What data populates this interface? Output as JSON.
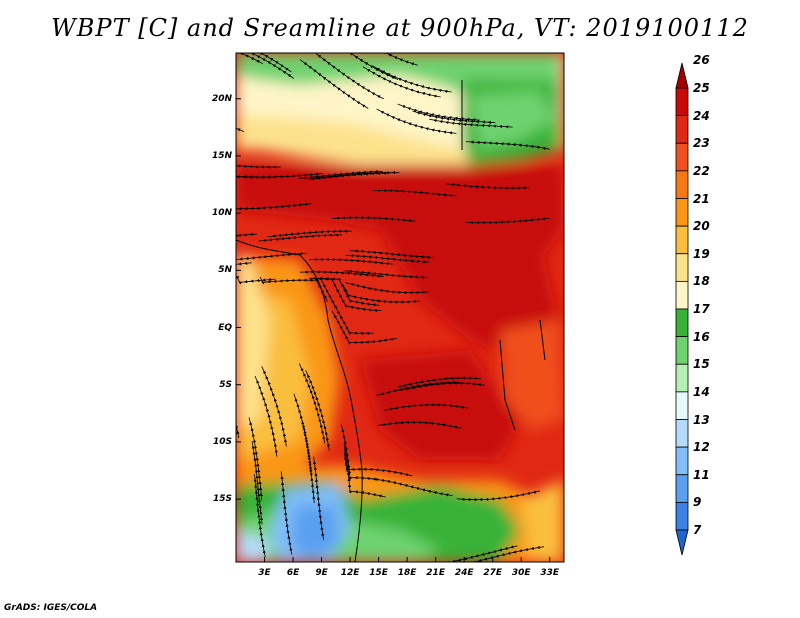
{
  "title": "WBPT [C] and Sreamline at 900hPa, VT: 2019100112",
  "credit": "GrADS: IGES/COLA",
  "map": {
    "lat_range": [
      -20.5,
      24
    ],
    "lon_range": [
      0,
      34.5
    ],
    "lat_ticks": [
      {
        "value": 20,
        "label": "20N"
      },
      {
        "value": 15,
        "label": "15N"
      },
      {
        "value": 10,
        "label": "10N"
      },
      {
        "value": 5,
        "label": "5N"
      },
      {
        "value": 0,
        "label": "EQ"
      },
      {
        "value": -5,
        "label": "5S"
      },
      {
        "value": -10,
        "label": "10S"
      },
      {
        "value": -15,
        "label": "15S"
      }
    ],
    "lon_ticks": [
      {
        "value": 3,
        "label": "3E"
      },
      {
        "value": 6,
        "label": "6E"
      },
      {
        "value": 9,
        "label": "9E"
      },
      {
        "value": 12,
        "label": "12E"
      },
      {
        "value": 15,
        "label": "15E"
      },
      {
        "value": 18,
        "label": "18E"
      },
      {
        "value": 21,
        "label": "21E"
      },
      {
        "value": 24,
        "label": "24E"
      },
      {
        "value": 27,
        "label": "27E"
      },
      {
        "value": 30,
        "label": "30E"
      },
      {
        "value": 33,
        "label": "33E"
      }
    ]
  },
  "colorbar": {
    "labels": [
      "26",
      "25",
      "24",
      "23",
      "22",
      "21",
      "20",
      "19",
      "18",
      "17",
      "16",
      "15",
      "14",
      "13",
      "12",
      "11",
      "9",
      "7"
    ],
    "colors": [
      "#a50000",
      "#c80a0a",
      "#e12814",
      "#f0501e",
      "#f57814",
      "#fa9614",
      "#fabe3c",
      "#fde28c",
      "#fff5c8",
      "#37b237",
      "#6ed26e",
      "#b4f0b4",
      "#e6fafa",
      "#b4dcfa",
      "#82befa",
      "#5aa0f0",
      "#3c82e6",
      "#1e64d2"
    ]
  }
}
